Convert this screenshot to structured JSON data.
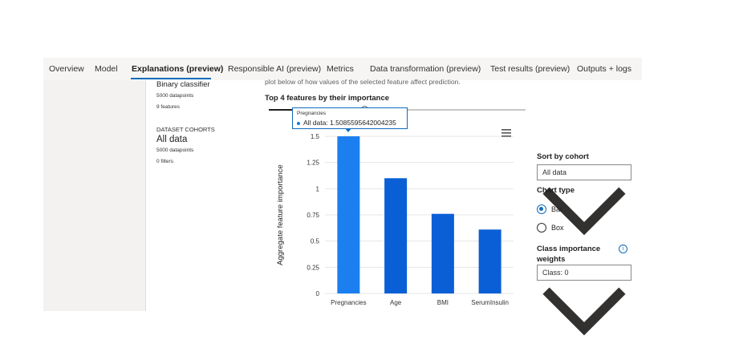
{
  "tabs": [
    {
      "label": "Overview"
    },
    {
      "label": "Model"
    },
    {
      "label": "Explanations (preview)"
    },
    {
      "label": "Responsible AI (preview)"
    },
    {
      "label": "Metrics"
    },
    {
      "label": "Data transformation (preview)"
    },
    {
      "label": "Test results (preview)"
    },
    {
      "label": "Outputs + logs"
    }
  ],
  "left_panel": {
    "model_type": "Binary classifier",
    "datapoints": "5000 datapoints",
    "features": "9 features",
    "cohorts_header": "DATASET COHORTS",
    "cohort_name": "All data",
    "cohort_datapoints": "5000 datapoints",
    "cohort_filters": "0 filters"
  },
  "main": {
    "intro_text": "plot below of how values of the selected feature affect prediction.",
    "chart_heading": "Top 4 features by their importance",
    "menu_icon": "hamburger-menu-icon"
  },
  "tooltip": {
    "title": "Pregnancies",
    "line": "All data: 1.5085595642004235"
  },
  "right_panel": {
    "sort_label": "Sort by cohort",
    "sort_value": "All data",
    "chart_type_label": "Chart type",
    "bar_label": "Bar",
    "box_label": "Box",
    "class_weights_label_1": "Class importance",
    "class_weights_label_2": "weights",
    "class_value": "Class: 0",
    "info_glyph": "i"
  },
  "chart_data": {
    "type": "bar",
    "categories": [
      "Pregnancies",
      "Age",
      "BMI",
      "SerumInsulin"
    ],
    "values": [
      1.5085595642004235,
      1.1,
      0.76,
      0.61
    ],
    "ylabel": "Aggregate feature importance",
    "ylim": [
      0,
      1.5
    ],
    "yticks": [
      "0",
      "0.25",
      "0.5",
      "0.75",
      "1",
      "1.25",
      "1.5"
    ],
    "grid": true,
    "colors": {
      "highlight": "#1b7ff0",
      "bar": "#0a5fd6"
    }
  }
}
